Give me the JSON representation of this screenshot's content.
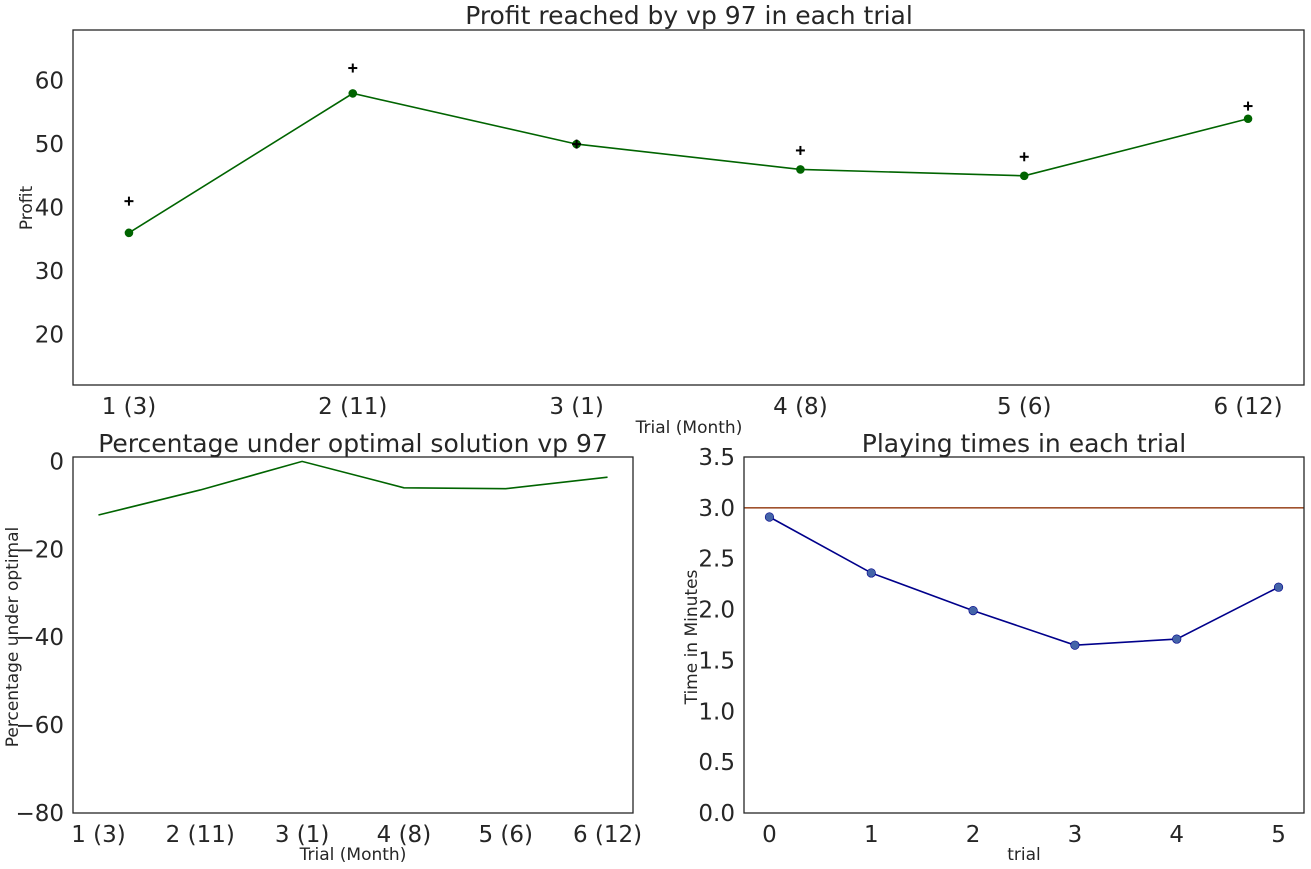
{
  "chart_data": [
    {
      "id": "profit",
      "type": "line",
      "title": "Profit reached by vp 97 in each trial",
      "xlabel": "Trial (Month)",
      "ylabel": "Profit",
      "categories": [
        "1 (3)",
        "2 (11)",
        "3 (1)",
        "4 (8)",
        "5 (6)",
        "6 (12)"
      ],
      "series": [
        {
          "values": [
            36,
            58,
            50,
            46,
            45,
            54
          ],
          "color": "#006400",
          "marker": "circle"
        },
        {
          "values": [
            41,
            62,
            50,
            49,
            48,
            56
          ],
          "color": "#000000",
          "marker": "plus",
          "line": false
        }
      ],
      "ylim": [
        12,
        68
      ],
      "yticks": [
        20,
        30,
        40,
        50,
        60
      ],
      "grid": false
    },
    {
      "id": "percentage",
      "type": "line",
      "title": "Percentage under optimal solution vp 97",
      "xlabel": "Trial (Month)",
      "ylabel": "Percentage under optimal",
      "categories": [
        "1 (3)",
        "2 (11)",
        "3 (1)",
        "4 (8)",
        "5 (6)",
        "6 (12)"
      ],
      "series": [
        {
          "values": [
            -12.2,
            -6.5,
            0,
            -6.0,
            -6.2,
            -3.6
          ],
          "color": "#006400"
        }
      ],
      "ylim": [
        -80,
        1
      ],
      "yticks": [
        0,
        -20,
        -40,
        -60,
        -80
      ],
      "grid": false
    },
    {
      "id": "times",
      "type": "line",
      "title": "Playing times in each trial",
      "xlabel": "trial",
      "ylabel": "Time in Minutes",
      "x": [
        0,
        1,
        2,
        3,
        4,
        5
      ],
      "series": [
        {
          "values": [
            2.91,
            2.36,
            1.99,
            1.65,
            1.71,
            2.22
          ],
          "color": "#00008b",
          "markerColor": "#4464a8"
        }
      ],
      "hline": {
        "y": 3.0,
        "color": "#a0522d"
      },
      "xlim": [
        -0.25,
        5.25
      ],
      "ylim": [
        0,
        3.5
      ],
      "yticks": [
        0.0,
        0.5,
        1.0,
        1.5,
        2.0,
        2.5,
        3.0,
        3.5
      ],
      "grid": false
    }
  ]
}
